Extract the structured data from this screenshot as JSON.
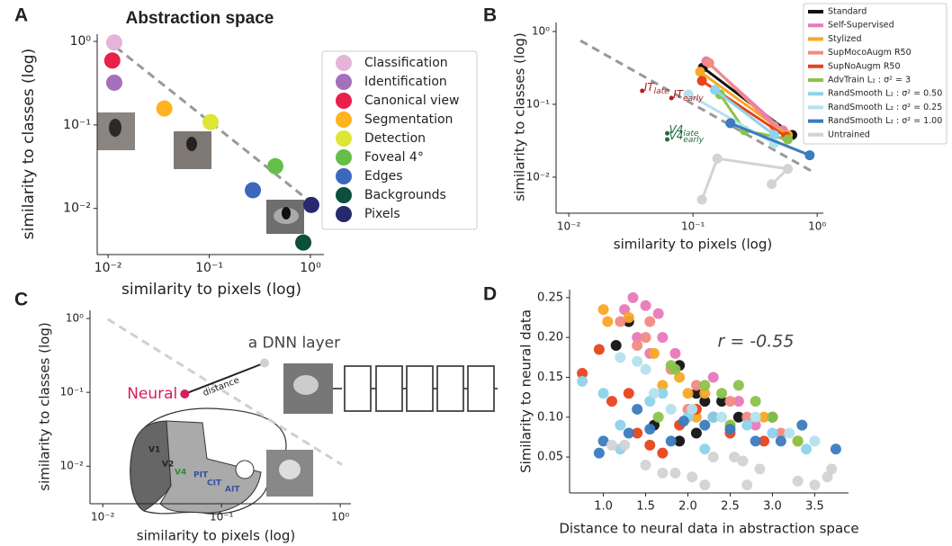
{
  "chart_data": [
    {
      "type": "scatter",
      "panel_label": "A",
      "title": "Abstraction space",
      "xlabel": "similarity to pixels (log)",
      "ylabel": "similarity to classes (log)",
      "xscale": "log",
      "yscale": "log",
      "xlim": [
        0.0078,
        1.36
      ],
      "ylim": [
        0.0028,
        1.22
      ],
      "xticks": [
        {
          "value": 0.01,
          "label": "10⁻²"
        },
        {
          "value": 0.1,
          "label": "10⁻¹"
        },
        {
          "value": 1,
          "label": "10⁰"
        }
      ],
      "yticks": [
        {
          "value": 0.01,
          "label": "10⁻²"
        },
        {
          "value": 0.1,
          "label": "10⁻¹"
        },
        {
          "value": 1,
          "label": "10⁰"
        }
      ],
      "reference_line": {
        "x": [
          0.012,
          1.0
        ],
        "y": [
          0.85,
          0.012
        ]
      },
      "legend": "outside right",
      "series": [
        {
          "name": "Classification",
          "color": "#e6b3d9",
          "x": [
            0.0115
          ],
          "y": [
            0.97
          ]
        },
        {
          "name": "Identification",
          "color": "#a46fbb",
          "x": [
            0.0115
          ],
          "y": [
            0.32
          ]
        },
        {
          "name": "Canonical view",
          "color": "#e8204a",
          "x": [
            0.011
          ],
          "y": [
            0.59
          ]
        },
        {
          "name": "Segmentation",
          "color": "#ffb321",
          "x": [
            0.036
          ],
          "y": [
            0.157
          ]
        },
        {
          "name": "Detection",
          "color": "#dde535",
          "x": [
            0.103
          ],
          "y": [
            0.108
          ]
        },
        {
          "name": "Foveal 4°",
          "color": "#63bf48",
          "x": [
            0.45
          ],
          "y": [
            0.032
          ]
        },
        {
          "name": "Edges",
          "color": "#3c67bd",
          "x": [
            0.27
          ],
          "y": [
            0.0165
          ]
        },
        {
          "name": "Backgrounds",
          "color": "#0b4f3c",
          "x": [
            0.85
          ],
          "y": [
            0.0039
          ]
        },
        {
          "name": "Pixels",
          "color": "#28286e",
          "x": [
            1.02
          ],
          "y": [
            0.011
          ]
        }
      ]
    },
    {
      "type": "line",
      "panel_label": "B",
      "xlabel": "similarity to pixels (log)",
      "ylabel": "similarity to classes (log)",
      "xscale": "log",
      "yscale": "log",
      "xlim": [
        0.0079,
        1.12
      ],
      "ylim": [
        0.0032,
        1.33
      ],
      "xticks": [
        {
          "value": 0.01,
          "label": "10⁻²"
        },
        {
          "value": 0.1,
          "label": "10⁻¹"
        },
        {
          "value": 1,
          "label": "10⁰"
        }
      ],
      "yticks": [
        {
          "value": 0.01,
          "label": "10⁻²"
        },
        {
          "value": 0.1,
          "label": "10⁻¹"
        },
        {
          "value": 1,
          "label": "10⁰"
        }
      ],
      "reference_line": {
        "x": [
          0.0124,
          0.95
        ],
        "y": [
          0.75,
          0.0115
        ]
      },
      "legend": "upper right",
      "series": [
        {
          "name": "Standard",
          "color": "#111111",
          "x": [
            0.12,
            0.63
          ],
          "y": [
            0.32,
            0.038
          ]
        },
        {
          "name": "Self-Supervised",
          "color": "#e879b9",
          "x": [
            0.128,
            0.53
          ],
          "y": [
            0.39,
            0.044
          ]
        },
        {
          "name": "Stylized",
          "color": "#f9a825",
          "x": [
            0.114,
            0.58
          ],
          "y": [
            0.28,
            0.038
          ]
        },
        {
          "name": "SupMocoAugm R50",
          "color": "#f28b82",
          "x": [
            0.135,
            0.45
          ],
          "y": [
            0.37,
            0.05
          ]
        },
        {
          "name": "SupNoAugm R50",
          "color": "#e8431c",
          "x": [
            0.118,
            0.56
          ],
          "y": [
            0.21,
            0.036
          ]
        },
        {
          "name": "AdvTrain L₂ : σ² = 3",
          "color": "#8bc34a",
          "x": [
            0.165,
            0.26,
            0.58
          ],
          "y": [
            0.137,
            0.044,
            0.033
          ]
        },
        {
          "name": "RandSmooth L₂ : σ² = 0.50",
          "color": "#8dd3ec",
          "x": [
            0.15,
            0.45
          ],
          "y": [
            0.158,
            0.038
          ]
        },
        {
          "name": "RandSmooth L₂ : σ² = 0.25",
          "color": "#b3e2ee",
          "x": [
            0.092,
            0.45
          ],
          "y": [
            0.137,
            0.029
          ]
        },
        {
          "name": "RandSmooth L₂ : σ² = 1.00",
          "color": "#3b7bbf",
          "x": [
            0.2,
            0.87
          ],
          "y": [
            0.055,
            0.02
          ]
        },
        {
          "name": "Untrained",
          "color": "#d3d3d3",
          "x": [
            0.118,
            0.157,
            0.58,
            0.43
          ],
          "y": [
            0.0049,
            0.018,
            0.013,
            0.008
          ]
        }
      ],
      "annotations": [
        {
          "name": "IT",
          "sub": "late",
          "color": "#b01c1c",
          "x": 0.039,
          "y": 0.153
        },
        {
          "name": "IT",
          "sub": "early",
          "color": "#b01c1c",
          "x": 0.067,
          "y": 0.122
        },
        {
          "name": "V4",
          "sub": "late",
          "color": "#1e6e3c",
          "x": 0.062,
          "y": 0.04
        },
        {
          "name": "V4",
          "sub": "early",
          "color": "#1e6e3c",
          "x": 0.062,
          "y": 0.033
        }
      ]
    },
    {
      "type": "schematic",
      "panel_label": "C",
      "xlabel": "similarity to pixels (log)",
      "ylabel": "similarity to classes (log)",
      "xscale": "log",
      "yscale": "log",
      "xlim": [
        0.0078,
        1.23
      ],
      "ylim": [
        0.0031,
        1.29
      ],
      "xticks": [
        {
          "value": 0.01,
          "label": "10⁻²"
        },
        {
          "value": 0.1,
          "label": "10⁻¹"
        },
        {
          "value": 1,
          "label": "10⁰"
        }
      ],
      "yticks": [
        {
          "value": 0.01,
          "label": "10⁻²"
        },
        {
          "value": 0.1,
          "label": "10⁻¹"
        },
        {
          "value": 1,
          "label": "10⁰"
        }
      ],
      "reference_line": {
        "x": [
          0.011,
          1.03
        ],
        "y": [
          0.98,
          0.0105
        ]
      },
      "points": [
        {
          "label": "Neural",
          "color": "#d81b60",
          "x": 0.049,
          "y": 0.095
        },
        {
          "label": "a DNN layer",
          "color": "#d0d0d0",
          "x": 0.23,
          "y": 0.25
        }
      ],
      "distance_label": "distance",
      "brain_labels": [
        "V1",
        "V2",
        "V4",
        "PIT",
        "CIT",
        "AIT"
      ]
    },
    {
      "type": "scatter",
      "panel_label": "D",
      "xlabel": "Distance to neural data in abstraction space",
      "ylabel": "Similarity to neural data",
      "annotation": "r = -0.55",
      "xscale": "linear",
      "yscale": "linear",
      "xlim": [
        0.6,
        3.9
      ],
      "ylim": [
        0.005,
        0.26
      ],
      "xticks": [
        {
          "value": 1,
          "label": "1.0"
        },
        1.5,
        {
          "value": 2,
          "label": "2.0"
        },
        2.5,
        {
          "value": 3,
          "label": "3.0"
        },
        3.5
      ],
      "yticks": [
        0.05,
        {
          "value": 0.1,
          "label": "0.10"
        },
        0.15,
        {
          "value": 0.2,
          "label": "0.20"
        },
        0.25
      ],
      "series": [
        {
          "color": "#111111",
          "x": [
            1.3,
            1.15,
            1.9,
            2.1,
            2.2,
            2.3,
            2.1,
            1.9,
            2.6,
            3.0,
            2.4,
            1.6
          ],
          "y": [
            0.22,
            0.19,
            0.165,
            0.13,
            0.12,
            0.1,
            0.08,
            0.07,
            0.1,
            0.1,
            0.12,
            0.09
          ]
        },
        {
          "color": "#e879b9",
          "x": [
            1.35,
            1.5,
            1.25,
            1.65,
            1.4,
            1.85,
            1.7,
            2.3,
            2.6,
            2.8,
            3.3,
            1.55
          ],
          "y": [
            0.25,
            0.24,
            0.235,
            0.23,
            0.2,
            0.18,
            0.2,
            0.15,
            0.12,
            0.09,
            0.07,
            0.18
          ]
        },
        {
          "color": "#f9a825",
          "x": [
            1.0,
            1.05,
            1.3,
            1.6,
            1.7,
            2.0,
            2.1,
            2.2,
            2.5,
            2.9,
            3.3,
            1.9
          ],
          "y": [
            0.235,
            0.22,
            0.225,
            0.18,
            0.14,
            0.13,
            0.1,
            0.13,
            0.09,
            0.1,
            0.07,
            0.15
          ]
        },
        {
          "color": "#f28b82",
          "x": [
            1.2,
            1.4,
            1.5,
            1.55,
            1.8,
            2.1,
            2.5,
            2.7,
            3.1,
            2.0
          ],
          "y": [
            0.22,
            0.19,
            0.2,
            0.22,
            0.16,
            0.14,
            0.12,
            0.1,
            0.08,
            0.11
          ]
        },
        {
          "color": "#e8431c",
          "x": [
            0.75,
            0.95,
            1.1,
            1.3,
            1.55,
            1.7,
            1.9,
            2.1,
            2.5,
            2.9,
            1.4
          ],
          "y": [
            0.155,
            0.185,
            0.12,
            0.13,
            0.065,
            0.055,
            0.09,
            0.11,
            0.08,
            0.07,
            0.08
          ]
        },
        {
          "color": "#8bc34a",
          "x": [
            1.8,
            1.85,
            2.2,
            2.4,
            2.6,
            2.8,
            3.0,
            3.3,
            2.5,
            1.65
          ],
          "y": [
            0.165,
            0.16,
            0.14,
            0.13,
            0.14,
            0.12,
            0.1,
            0.07,
            0.09,
            0.1
          ]
        },
        {
          "color": "#8dd3ec",
          "x": [
            0.75,
            1.0,
            1.2,
            1.2,
            1.55,
            1.7,
            2.0,
            2.3,
            2.7,
            3.0,
            3.4,
            2.2
          ],
          "y": [
            0.145,
            0.13,
            0.09,
            0.06,
            0.12,
            0.13,
            0.1,
            0.1,
            0.09,
            0.08,
            0.06,
            0.06
          ]
        },
        {
          "color": "#b3e2ee",
          "x": [
            1.2,
            1.4,
            1.6,
            1.8,
            2.05,
            2.4,
            2.8,
            3.2,
            3.5,
            1.5
          ],
          "y": [
            0.175,
            0.17,
            0.13,
            0.11,
            0.11,
            0.1,
            0.1,
            0.08,
            0.07,
            0.16
          ]
        },
        {
          "color": "#3b7bbf",
          "x": [
            0.95,
            1.0,
            1.3,
            1.55,
            1.8,
            1.95,
            2.2,
            2.5,
            2.8,
            3.1,
            3.35,
            3.75,
            1.4
          ],
          "y": [
            0.055,
            0.07,
            0.08,
            0.085,
            0.07,
            0.095,
            0.09,
            0.085,
            0.07,
            0.07,
            0.09,
            0.06,
            0.11
          ]
        },
        {
          "color": "#d3d3d3",
          "x": [
            1.1,
            1.25,
            1.5,
            1.7,
            1.85,
            2.05,
            2.3,
            2.55,
            2.65,
            2.7,
            2.85,
            3.3,
            3.5,
            3.65,
            3.7,
            2.2
          ],
          "y": [
            0.065,
            0.065,
            0.04,
            0.03,
            0.03,
            0.025,
            0.05,
            0.05,
            0.045,
            0.015,
            0.035,
            0.02,
            0.015,
            0.025,
            0.035,
            0.015
          ]
        }
      ]
    }
  ]
}
